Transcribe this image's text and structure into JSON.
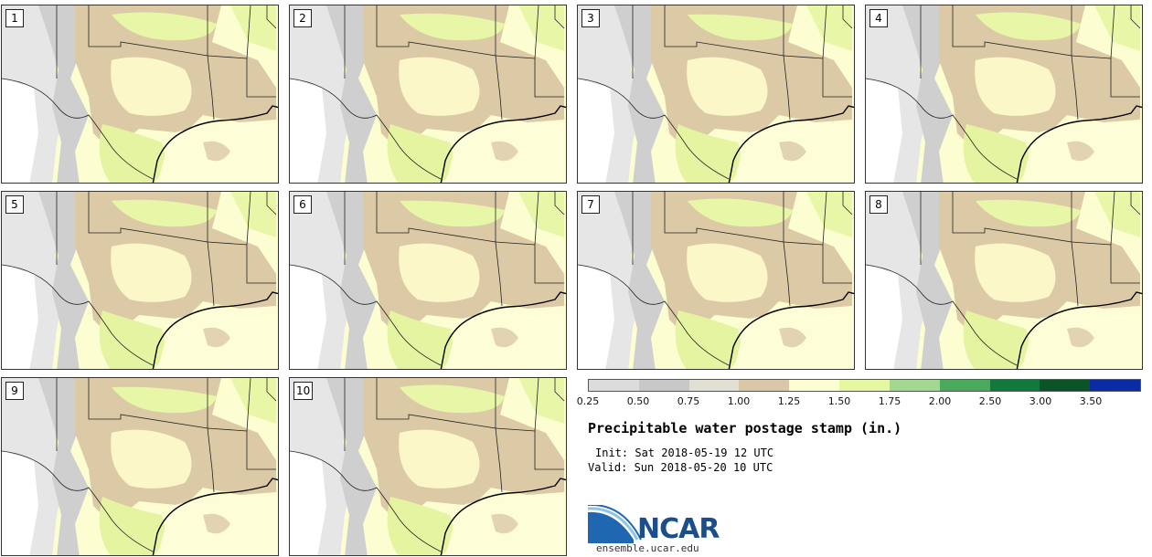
{
  "panels": [
    {
      "label": "1"
    },
    {
      "label": "2"
    },
    {
      "label": "3"
    },
    {
      "label": "4"
    },
    {
      "label": "5"
    },
    {
      "label": "6"
    },
    {
      "label": "7"
    },
    {
      "label": "8"
    },
    {
      "label": "9"
    },
    {
      "label": "10"
    }
  ],
  "legend": {
    "colors": [
      "#dcdcdc",
      "#c8c8c8",
      "#e2dfd4",
      "#d8c8a8",
      "#fdfdd2",
      "#e6f7a2",
      "#a2d892",
      "#49aa5c",
      "#10793c",
      "#0b5428",
      "#0a2aa6"
    ],
    "ticks": [
      "0.25",
      "0.50",
      "0.75",
      "1.00",
      "1.25",
      "1.50",
      "1.75",
      "2.00",
      "2.50",
      "3.00",
      "3.50"
    ]
  },
  "title": "Precipitable water postage stamp (in.)",
  "init": "Init: Sat 2018-05-19 12 UTC",
  "valid": "Valid: Sun 2018-05-20 10 UTC",
  "logo_text": "NCAR",
  "url": "ensemble.ucar.edu"
}
